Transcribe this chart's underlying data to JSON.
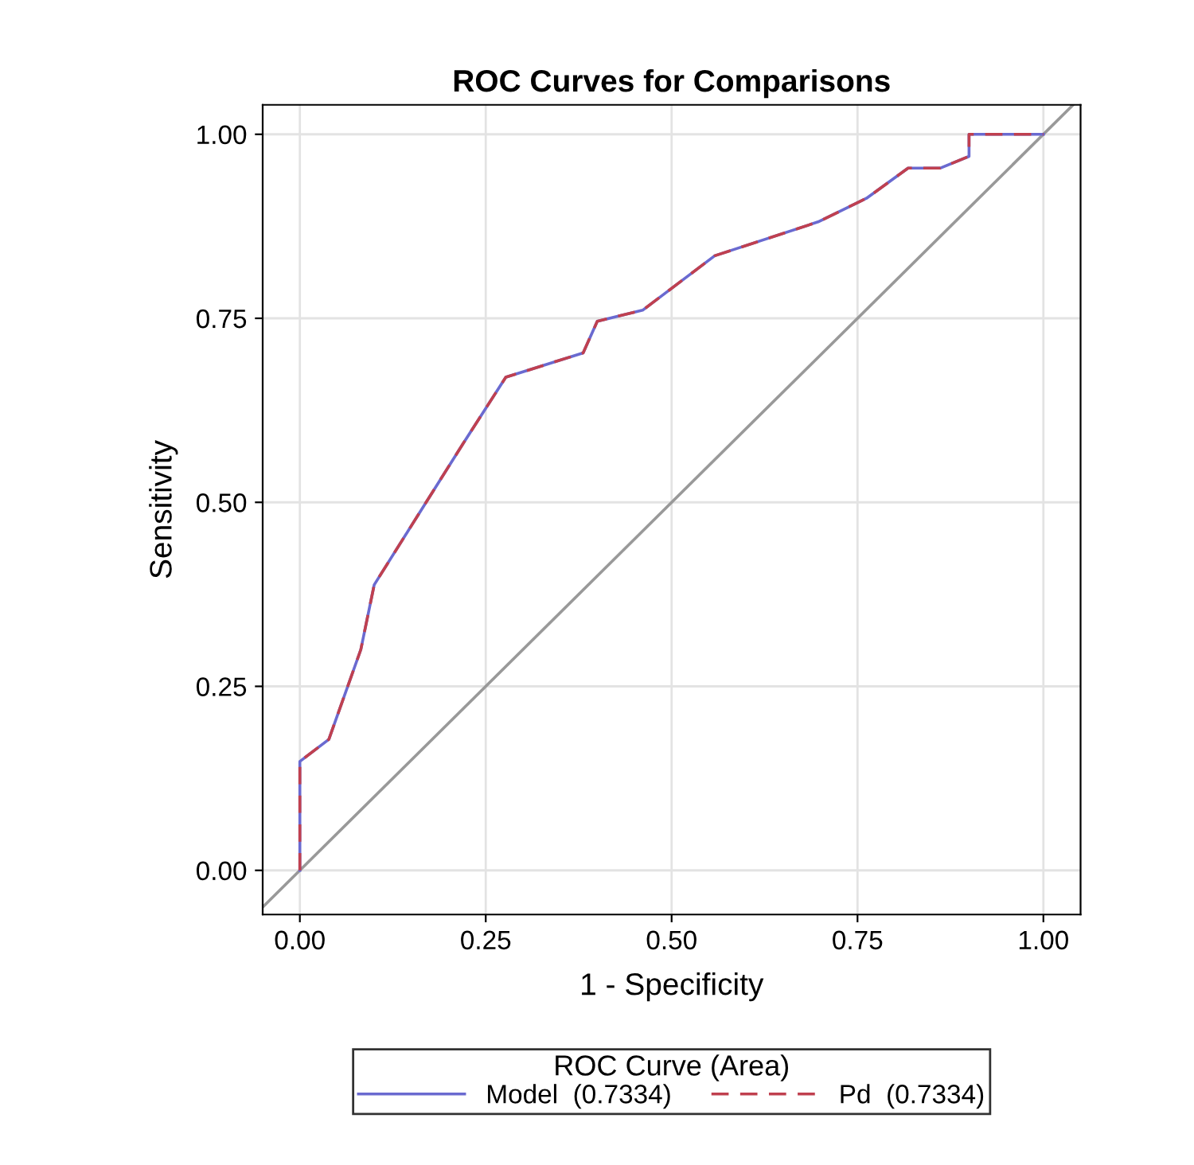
{
  "chart_data": {
    "type": "line",
    "title": "ROC Curves for Comparisons",
    "xlabel": "1 - Specificity",
    "ylabel": "Sensitivity",
    "legend_title": "ROC Curve (Area)",
    "legend": "bottom",
    "grid": true,
    "xlim": [
      -0.05,
      1.05
    ],
    "ylim": [
      -0.06,
      1.04
    ],
    "xticks": [
      {
        "value": 0,
        "label": "0.00"
      },
      {
        "value": 0.25,
        "label": "0.25"
      },
      {
        "value": 0.5,
        "label": "0.50"
      },
      {
        "value": 0.75,
        "label": "0.75"
      },
      {
        "value": 1,
        "label": "1.00"
      }
    ],
    "yticks": [
      {
        "value": 0,
        "label": "0.00"
      },
      {
        "value": 0.25,
        "label": "0.25"
      },
      {
        "value": 0.5,
        "label": "0.50"
      },
      {
        "value": 0.75,
        "label": "0.75"
      },
      {
        "value": 1,
        "label": "1.00"
      }
    ],
    "series": [
      {
        "name": "Model  (0.7334)",
        "color": "#6a6ad0",
        "line_style": "solid",
        "x": [
          0,
          0,
          0.039,
          0.082,
          0.1,
          0.219,
          0.277,
          0.381,
          0.4,
          0.461,
          0.558,
          0.697,
          0.762,
          0.818,
          0.861,
          0.9,
          0.9,
          1
        ],
        "values": [
          0,
          0.148,
          0.178,
          0.3,
          0.388,
          0.579,
          0.67,
          0.703,
          0.746,
          0.761,
          0.835,
          0.881,
          0.913,
          0.954,
          0.954,
          0.97,
          1,
          1
        ]
      },
      {
        "name": "Pd  (0.7334)",
        "color": "#c0404f",
        "line_style": "dashed",
        "x": [
          0,
          0,
          0.039,
          0.082,
          0.1,
          0.219,
          0.277,
          0.381,
          0.4,
          0.461,
          0.558,
          0.697,
          0.762,
          0.818,
          0.861,
          0.9,
          0.9,
          1
        ],
        "values": [
          0,
          0.148,
          0.178,
          0.3,
          0.388,
          0.579,
          0.67,
          0.703,
          0.746,
          0.761,
          0.835,
          0.881,
          0.913,
          0.954,
          0.954,
          0.97,
          1,
          1
        ]
      },
      {
        "color": "#999999",
        "line_style": "solid",
        "x": [
          -0.05,
          1.04
        ],
        "values": [
          -0.05,
          1.04
        ]
      }
    ]
  }
}
